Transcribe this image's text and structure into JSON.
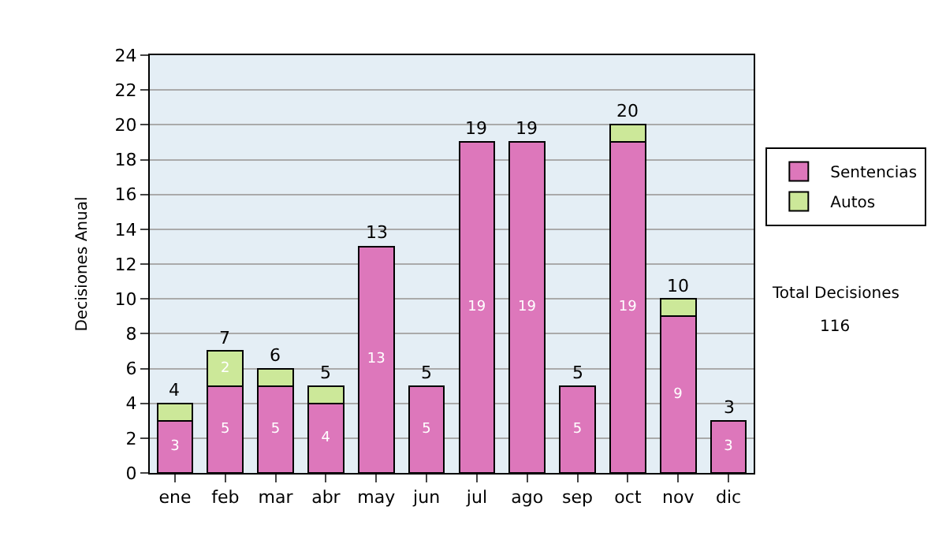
{
  "chart_data": {
    "type": "bar",
    "stacked": true,
    "ylabel": "Decisiones Anual",
    "categories": [
      "ene",
      "feb",
      "mar",
      "abr",
      "may",
      "jun",
      "jul",
      "ago",
      "sep",
      "oct",
      "nov",
      "dic"
    ],
    "series": [
      {
        "name": "Sentencias",
        "color": "#dd77bb",
        "values": [
          3,
          5,
          5,
          4,
          13,
          5,
          19,
          19,
          5,
          19,
          9,
          3
        ],
        "value_labels": [
          "3",
          "5",
          "5",
          "4",
          "13",
          "5",
          "19",
          "19",
          "5",
          "19",
          "9",
          "3"
        ]
      },
      {
        "name": "Autos",
        "color": "#cce899",
        "values": [
          1,
          2,
          1,
          1,
          null,
          null,
          null,
          null,
          null,
          1,
          1,
          null
        ],
        "value_labels": [
          null,
          "2",
          null,
          null,
          null,
          null,
          null,
          null,
          null,
          null,
          null,
          null
        ]
      }
    ],
    "totals": [
      "4",
      "7",
      "6",
      "5",
      "13",
      "5",
      "19",
      "19",
      "5",
      "20",
      "10",
      "3"
    ],
    "ylim": [
      0,
      24
    ],
    "yticks": [
      0,
      2,
      4,
      6,
      8,
      10,
      12,
      14,
      16,
      18,
      20,
      22,
      24
    ],
    "grid": "y",
    "legend": "right",
    "annotations": [
      "Total Decisiones",
      "116"
    ]
  }
}
